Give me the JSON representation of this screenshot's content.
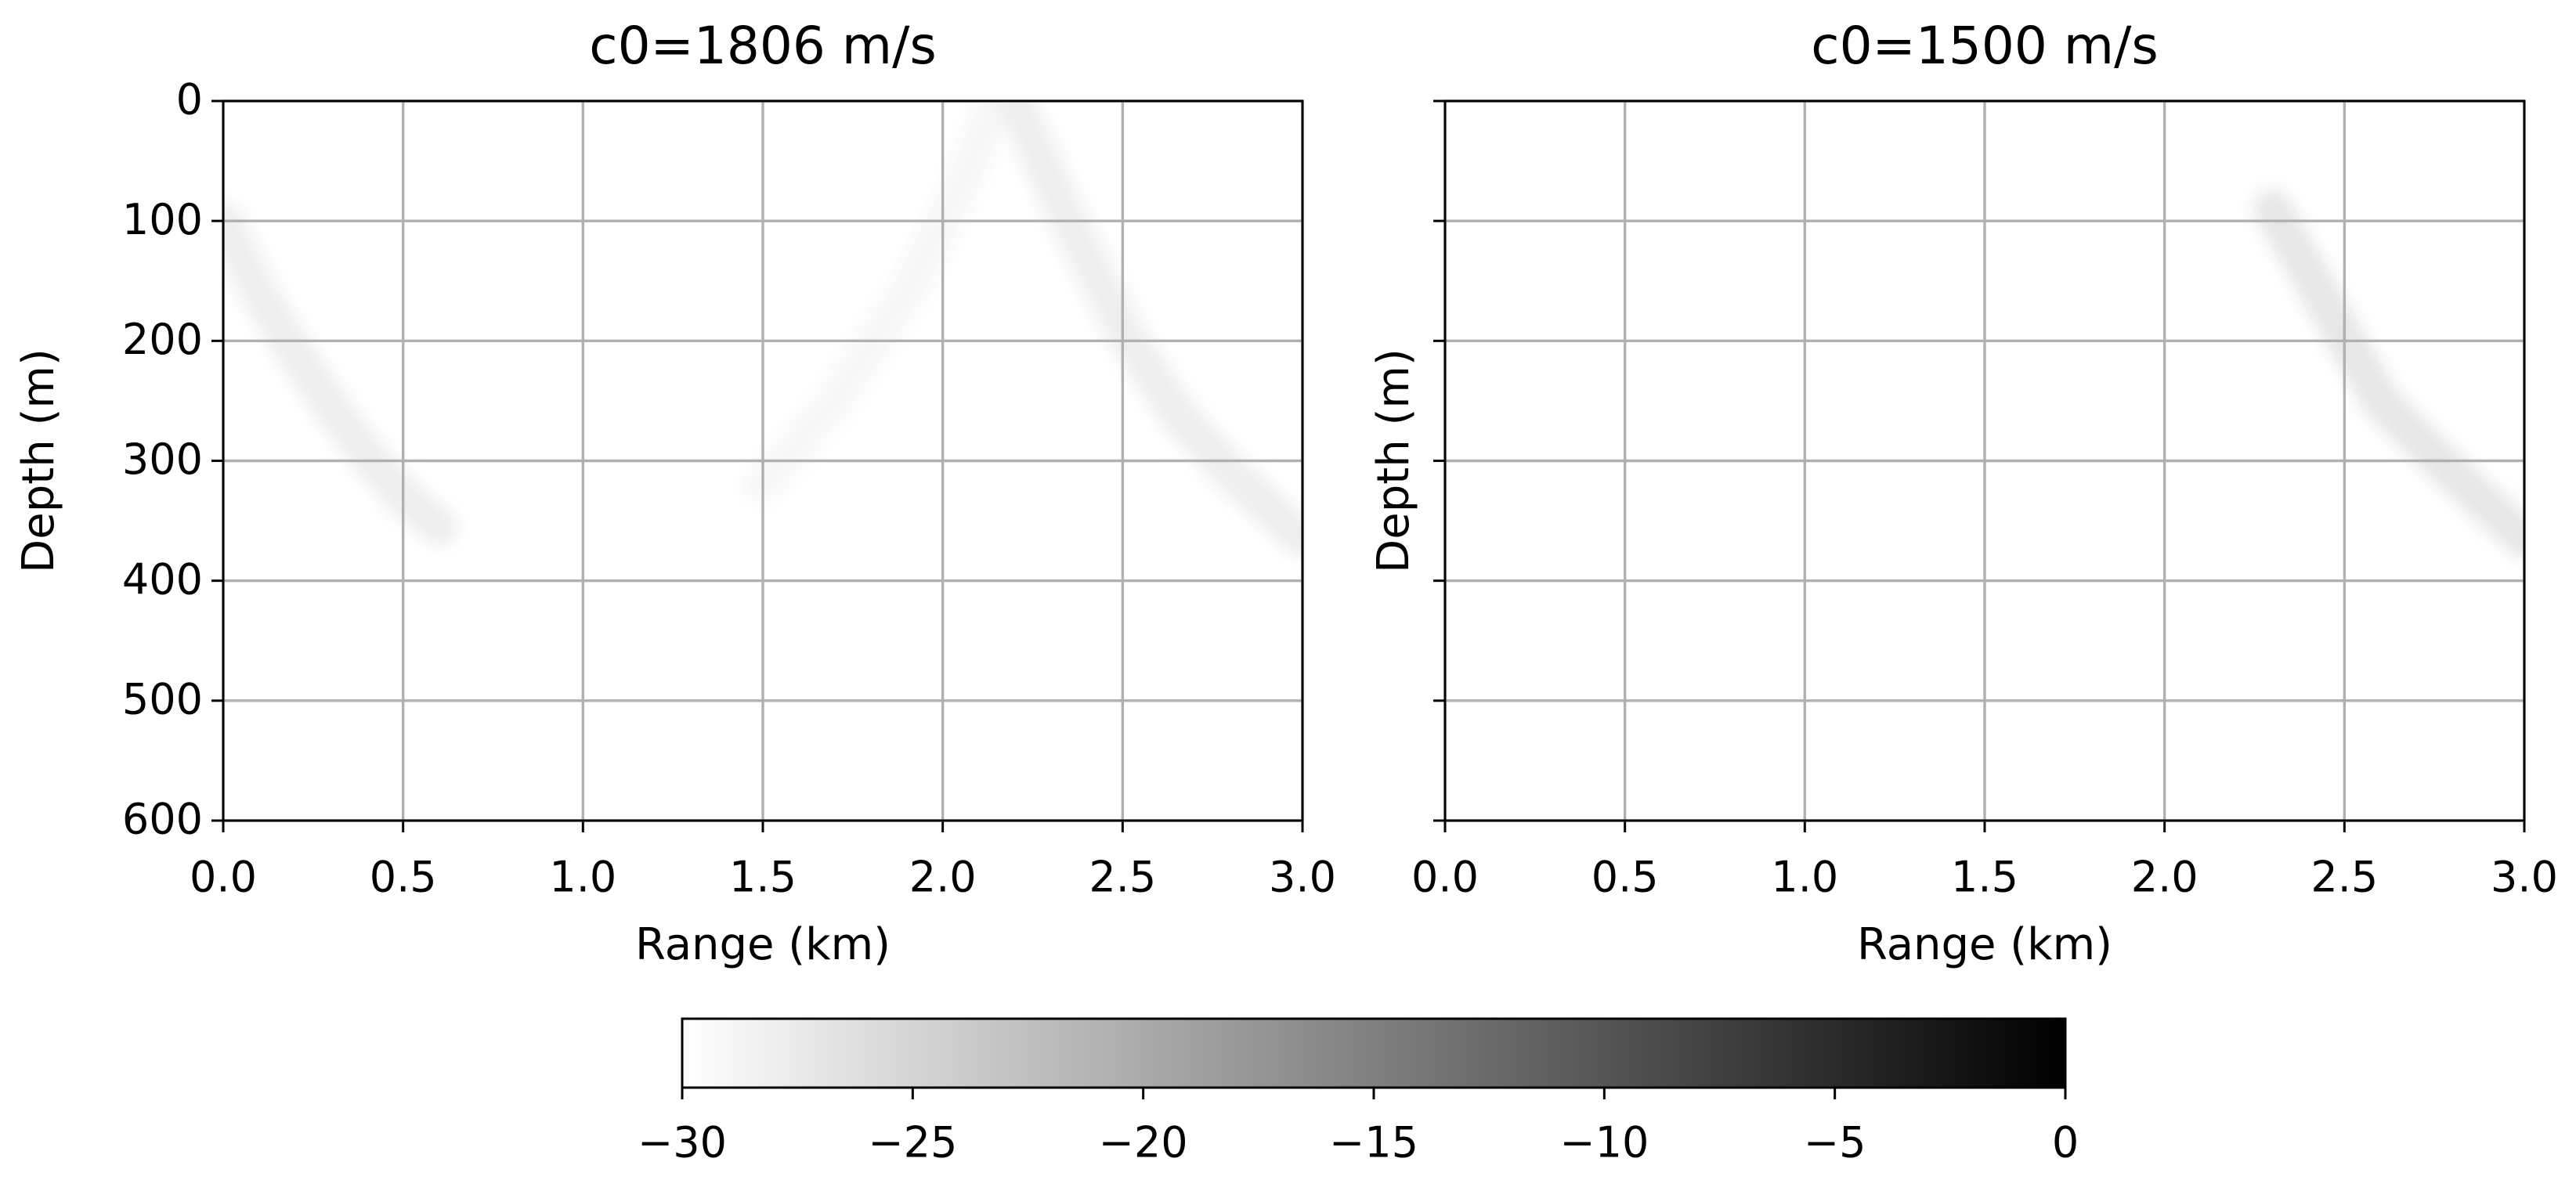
{
  "chart_data": [
    {
      "type": "heatmap",
      "title": "c0=1806 m/s",
      "x_label": "Range (km)",
      "y_label": "Depth (m)",
      "xlim": [
        0,
        3
      ],
      "xticks": [
        {
          "value": 0,
          "label": "0.0"
        },
        0.5,
        {
          "value": 1,
          "label": "1.0"
        },
        1.5,
        {
          "value": 2,
          "label": "2.0"
        },
        2.5,
        {
          "value": 3,
          "label": "3.0"
        }
      ],
      "ylim": [
        600,
        0
      ],
      "yticks": [
        0,
        100,
        200,
        300,
        400,
        500,
        600
      ],
      "show_ytick_labels": true,
      "grid": true,
      "series": [
        {
          "level": -28,
          "x": [
            0,
            0.1,
            0.2,
            0.3,
            0.4,
            0.5,
            0.6
          ],
          "values": [
            100,
            160,
            210,
            255,
            295,
            330,
            355
          ]
        },
        {
          "level": -29,
          "x": [
            1.5,
            1.7,
            1.9,
            2.05,
            2.15
          ],
          "values": [
            320,
            250,
            160,
            70,
            0
          ]
        },
        {
          "level": -28,
          "x": [
            2.2,
            2.35,
            2.5,
            2.65,
            2.8,
            3.0
          ],
          "values": [
            0,
            100,
            190,
            260,
            310,
            365
          ]
        }
      ]
    },
    {
      "type": "heatmap",
      "title": "c0=1500 m/s",
      "x_label": "Range (km)",
      "y_label": "Depth (m)",
      "xlim": [
        0,
        3
      ],
      "xticks": [
        {
          "value": 0,
          "label": "0.0"
        },
        0.5,
        {
          "value": 1,
          "label": "1.0"
        },
        1.5,
        {
          "value": 2,
          "label": "2.0"
        },
        2.5,
        {
          "value": 3,
          "label": "3.0"
        }
      ],
      "ylim": [
        600,
        0
      ],
      "yticks": [
        0,
        100,
        200,
        300,
        400,
        500,
        600
      ],
      "show_ytick_labels": false,
      "grid": true,
      "series": [
        {
          "level": -27,
          "x": [
            2.3,
            2.45,
            2.6,
            2.8,
            3.0
          ],
          "values": [
            90,
            170,
            250,
            310,
            365
          ]
        }
      ]
    },
    {
      "type": "colorbar",
      "cmap": "gray_r",
      "clim": [
        -30,
        0
      ],
      "ticks": [
        {
          "value": -30,
          "label": "−30"
        },
        {
          "value": -25,
          "label": "−25"
        },
        {
          "value": -20,
          "label": "−20"
        },
        {
          "value": -15,
          "label": "−15"
        },
        {
          "value": -10,
          "label": "−10"
        },
        {
          "value": -5,
          "label": "−5"
        },
        0
      ]
    }
  ]
}
